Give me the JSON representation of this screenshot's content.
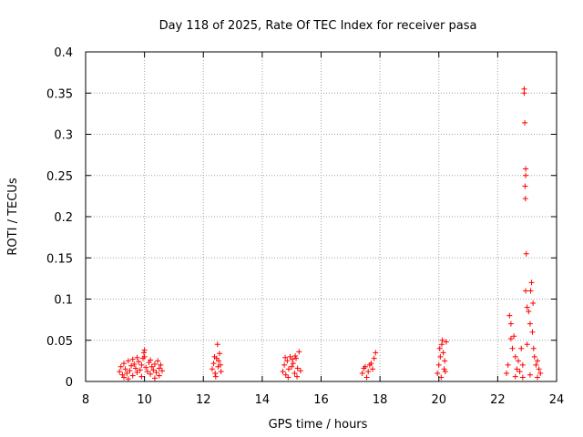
{
  "chart_data": {
    "type": "scatter",
    "title": "Day 118 of 2025, Rate Of TEC Index for receiver pasa",
    "xlabel": "GPS time / hours",
    "ylabel": "ROTI / TECUs",
    "xlim": [
      8,
      24
    ],
    "ylim": [
      0,
      0.4
    ],
    "x_ticks": [
      8,
      10,
      12,
      14,
      16,
      18,
      20,
      22,
      24
    ],
    "x_tick_labels": [
      "8",
      "10",
      "12",
      "14",
      "16",
      "18",
      "20",
      "22",
      "24"
    ],
    "y_ticks": [
      0,
      0.05,
      0.1,
      0.15,
      0.2,
      0.25,
      0.3,
      0.35,
      0.4
    ],
    "y_tick_labels": [
      "0",
      "0.05",
      "0.1",
      "0.15",
      "0.2",
      "0.25",
      "0.3",
      "0.35",
      "0.4"
    ],
    "grid": true,
    "marker": "+",
    "marker_color": "#ff0000",
    "series": [
      {
        "name": "ROTI",
        "points": [
          [
            9.15,
            0.012
          ],
          [
            9.2,
            0.018
          ],
          [
            9.25,
            0.008
          ],
          [
            9.3,
            0.022
          ],
          [
            9.35,
            0.015
          ],
          [
            9.4,
            0.01
          ],
          [
            9.45,
            0.025
          ],
          [
            9.5,
            0.013
          ],
          [
            9.55,
            0.019
          ],
          [
            9.6,
            0.007
          ],
          [
            9.65,
            0.021
          ],
          [
            9.7,
            0.016
          ],
          [
            9.75,
            0.011
          ],
          [
            9.8,
            0.024
          ],
          [
            9.85,
            0.014
          ],
          [
            9.9,
            0.02
          ],
          [
            9.95,
            0.028
          ],
          [
            10.0,
            0.03
          ],
          [
            10.0,
            0.038
          ],
          [
            9.98,
            0.035
          ],
          [
            10.05,
            0.017
          ],
          [
            10.1,
            0.012
          ],
          [
            10.15,
            0.023
          ],
          [
            10.2,
            0.009
          ],
          [
            10.25,
            0.018
          ],
          [
            10.3,
            0.014
          ],
          [
            10.35,
            0.021
          ],
          [
            10.4,
            0.011
          ],
          [
            10.45,
            0.025
          ],
          [
            10.5,
            0.016
          ],
          [
            10.55,
            0.02
          ],
          [
            10.6,
            0.013
          ],
          [
            9.3,
            0.005
          ],
          [
            9.6,
            0.027
          ],
          [
            9.9,
            0.006
          ],
          [
            10.2,
            0.026
          ],
          [
            10.5,
            0.007
          ],
          [
            9.45,
            0.003
          ],
          [
            10.35,
            0.004
          ],
          [
            9.75,
            0.029
          ],
          [
            12.3,
            0.015
          ],
          [
            12.35,
            0.022
          ],
          [
            12.4,
            0.01
          ],
          [
            12.45,
            0.028
          ],
          [
            12.5,
            0.018
          ],
          [
            12.55,
            0.034
          ],
          [
            12.48,
            0.045
          ],
          [
            12.6,
            0.012
          ],
          [
            12.42,
            0.006
          ],
          [
            12.52,
            0.025
          ],
          [
            12.38,
            0.03
          ],
          [
            12.58,
            0.02
          ],
          [
            14.7,
            0.012
          ],
          [
            14.75,
            0.02
          ],
          [
            14.8,
            0.008
          ],
          [
            14.85,
            0.025
          ],
          [
            14.9,
            0.015
          ],
          [
            14.95,
            0.03
          ],
          [
            15.0,
            0.018
          ],
          [
            15.05,
            0.022
          ],
          [
            15.1,
            0.01
          ],
          [
            15.15,
            0.028
          ],
          [
            15.2,
            0.016
          ],
          [
            15.25,
            0.036
          ],
          [
            15.3,
            0.013
          ],
          [
            14.88,
            0.005
          ],
          [
            15.02,
            0.027
          ],
          [
            15.18,
            0.006
          ],
          [
            14.78,
            0.029
          ],
          [
            15.12,
            0.031
          ],
          [
            17.4,
            0.01
          ],
          [
            17.5,
            0.018
          ],
          [
            17.6,
            0.012
          ],
          [
            17.7,
            0.022
          ],
          [
            17.75,
            0.015
          ],
          [
            17.8,
            0.028
          ],
          [
            17.85,
            0.035
          ],
          [
            17.55,
            0.005
          ],
          [
            17.65,
            0.02
          ],
          [
            17.45,
            0.016
          ],
          [
            19.95,
            0.01
          ],
          [
            20.0,
            0.02
          ],
          [
            20.05,
            0.03
          ],
          [
            20.1,
            0.045
          ],
          [
            20.12,
            0.05
          ],
          [
            20.15,
            0.035
          ],
          [
            20.2,
            0.025
          ],
          [
            20.25,
            0.048
          ],
          [
            20.08,
            0.005
          ],
          [
            20.18,
            0.015
          ],
          [
            20.03,
            0.04
          ],
          [
            20.22,
            0.012
          ],
          [
            22.3,
            0.01
          ],
          [
            22.35,
            0.02
          ],
          [
            22.4,
            0.08
          ],
          [
            22.45,
            0.07
          ],
          [
            22.5,
            0.04
          ],
          [
            22.55,
            0.055
          ],
          [
            22.6,
            0.03
          ],
          [
            22.65,
            0.015
          ],
          [
            22.7,
            0.025
          ],
          [
            22.75,
            0.012
          ],
          [
            22.8,
            0.04
          ],
          [
            22.85,
            0.02
          ],
          [
            22.9,
            0.355
          ],
          [
            22.9,
            0.35
          ],
          [
            22.92,
            0.314
          ],
          [
            22.95,
            0.258
          ],
          [
            22.95,
            0.25
          ],
          [
            22.93,
            0.237
          ],
          [
            22.94,
            0.222
          ],
          [
            22.97,
            0.155
          ],
          [
            23.0,
            0.09
          ],
          [
            23.05,
            0.085
          ],
          [
            23.1,
            0.07
          ],
          [
            23.15,
            0.12
          ],
          [
            23.12,
            0.11
          ],
          [
            23.2,
            0.095
          ],
          [
            23.18,
            0.06
          ],
          [
            23.25,
            0.03
          ],
          [
            23.3,
            0.02
          ],
          [
            23.35,
            0.025
          ],
          [
            23.4,
            0.015
          ],
          [
            23.45,
            0.01
          ],
          [
            22.95,
            0.11
          ],
          [
            23.0,
            0.045
          ],
          [
            22.85,
            0.005
          ],
          [
            23.1,
            0.008
          ],
          [
            22.6,
            0.006
          ],
          [
            23.35,
            0.005
          ],
          [
            22.45,
            0.052
          ],
          [
            23.22,
            0.04
          ]
        ]
      }
    ]
  }
}
